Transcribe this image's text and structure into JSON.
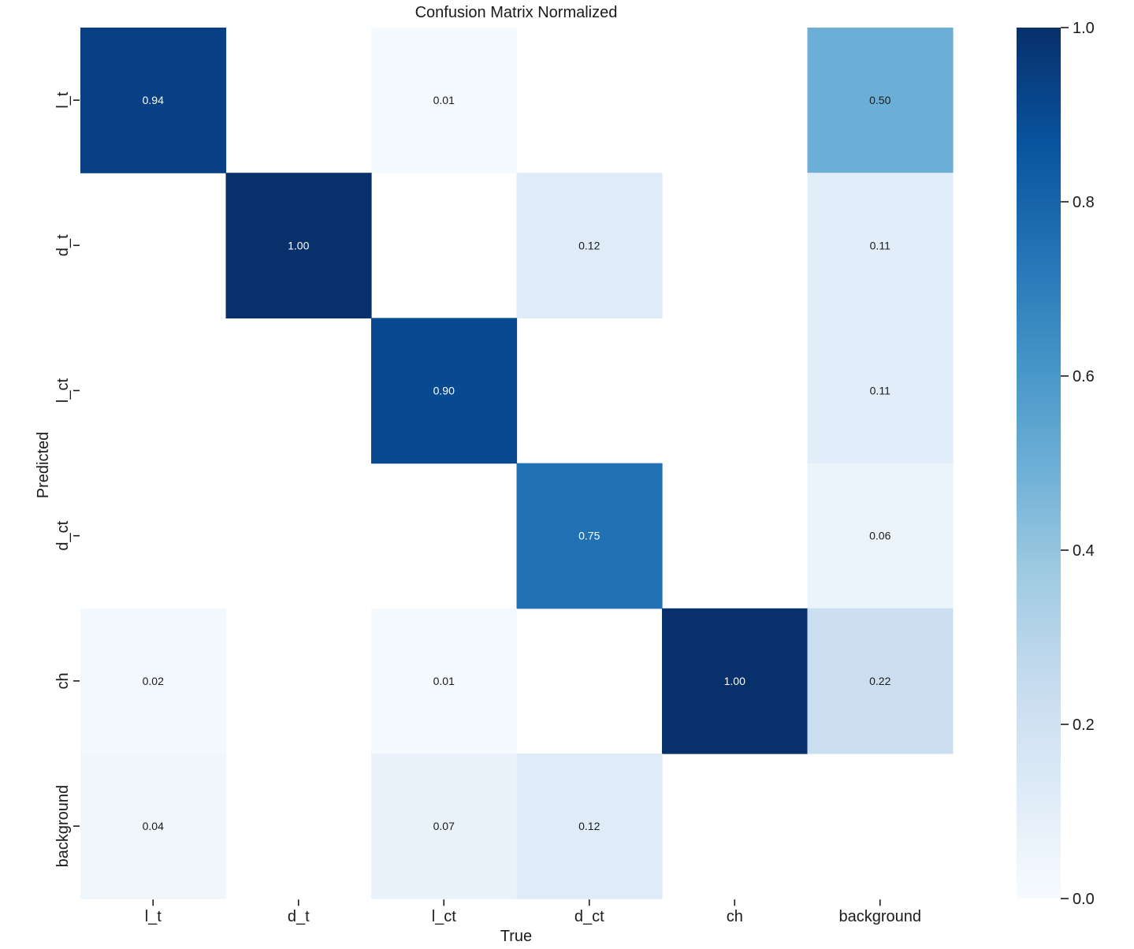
{
  "chart_data": {
    "type": "heatmap",
    "title": "Confusion Matrix Normalized",
    "xlabel": "True",
    "ylabel": "Predicted",
    "x_categories": [
      "l_t",
      "d_t",
      "l_ct",
      "d_ct",
      "ch",
      "background"
    ],
    "y_categories": [
      "l_t",
      "d_t",
      "l_ct",
      "d_ct",
      "ch",
      "background"
    ],
    "matrix": [
      [
        0.94,
        null,
        0.01,
        null,
        null,
        0.5
      ],
      [
        null,
        1.0,
        null,
        0.12,
        null,
        0.11
      ],
      [
        null,
        null,
        0.9,
        null,
        null,
        0.11
      ],
      [
        null,
        null,
        null,
        0.75,
        null,
        0.06
      ],
      [
        0.02,
        null,
        0.01,
        null,
        1.0,
        0.22
      ],
      [
        0.04,
        null,
        0.07,
        0.12,
        null,
        null
      ]
    ],
    "value_range": [
      0.0,
      1.0
    ],
    "colormap": "Blues",
    "colorbar_ticks": [
      "0.0",
      "0.2",
      "0.4",
      "0.6",
      "0.8",
      "1.0"
    ],
    "colors": {
      "low": "#f7fbff",
      "high": "#08306b"
    }
  }
}
